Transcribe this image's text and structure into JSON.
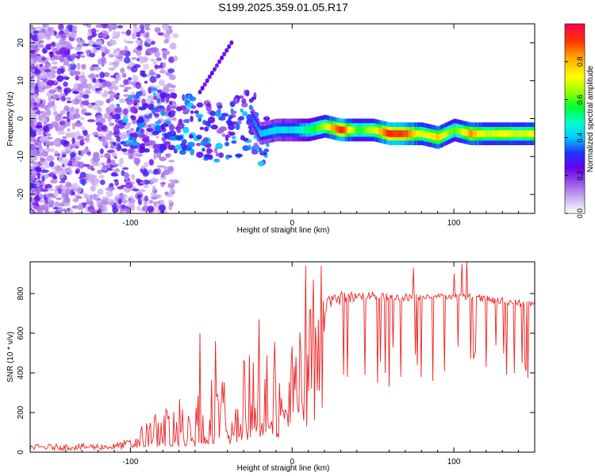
{
  "title": "S199.2025.359.01.05.R17",
  "colors": {
    "snr_line": "#ee2222",
    "colormap": [
      "#ffffff",
      "#c9b0f0",
      "#9a55e8",
      "#6600ee",
      "#2233ff",
      "#00ccff",
      "#00ffcc",
      "#00ff33",
      "#99ff00",
      "#ffff00",
      "#ffaa00",
      "#ff3300",
      "#ff0055"
    ]
  },
  "chart_data": [
    {
      "type": "heatmap",
      "title": "S199.2025.359.01.05.R17",
      "xlabel": "Height of straight line (km)",
      "ylabel": "Frequency (Hz)",
      "xlim": [
        -162,
        150
      ],
      "ylim": [
        -25,
        25
      ],
      "xticks": [
        -100,
        0,
        100
      ],
      "xtick_labels": [
        "-100",
        "0",
        "100"
      ],
      "yticks": [
        20,
        10,
        0,
        -10,
        -20
      ],
      "ytick_labels": [
        "20",
        "10",
        "0",
        "-10",
        "-20"
      ],
      "colorbar": {
        "label": "Normalized spectral amplitude",
        "range": [
          0,
          1
        ],
        "ticks": [
          0.0,
          0.2,
          0.4,
          0.6,
          0.8
        ],
        "tick_labels": [
          "0.0",
          "0.2",
          "0.4",
          "0.6",
          "0.8"
        ]
      },
      "ridge": {
        "x": [
          -162,
          -120,
          -100,
          -80,
          -60,
          -40,
          -25,
          -20,
          -10,
          0,
          10,
          20,
          30,
          40,
          50,
          60,
          70,
          80,
          90,
          100,
          110,
          120,
          130,
          140,
          150
        ],
        "freq": [
          0,
          0,
          -1,
          0,
          -2,
          -4,
          0,
          -4,
          -3,
          -3,
          -3,
          -2,
          -3,
          -3,
          -3,
          -4,
          -4,
          -4,
          -5,
          -3,
          -4,
          -4,
          -4,
          -4,
          -4
        ],
        "peak_amplitude": [
          0.15,
          0.2,
          0.3,
          0.35,
          0.35,
          0.35,
          0.35,
          0.4,
          0.45,
          0.45,
          0.55,
          0.7,
          0.95,
          0.6,
          0.7,
          0.95,
          0.9,
          0.7,
          0.8,
          0.6,
          0.85,
          0.7,
          0.75,
          0.7,
          0.75
        ]
      }
    },
    {
      "type": "line",
      "xlabel": "Height of straight line (km)",
      "ylabel": "SNR (10 * v/v)",
      "xlim": [
        -162,
        150
      ],
      "ylim": [
        0,
        960
      ],
      "xticks": [
        -100,
        0,
        100
      ],
      "xtick_labels": [
        "-100",
        "0",
        "100"
      ],
      "yticks": [
        0,
        200,
        400,
        600,
        800
      ],
      "ytick_labels": [
        "0",
        "200",
        "400",
        "600",
        "800"
      ],
      "series": [
        {
          "name": "SNR",
          "envelope_x": [
            -162,
            -110,
            -100,
            -90,
            -80,
            -70,
            -60,
            -50,
            -40,
            -30,
            -20,
            -10,
            0,
            10,
            20,
            30,
            40,
            50,
            60,
            70,
            80,
            90,
            100,
            110,
            120,
            130,
            140,
            150
          ],
          "envelope_low": [
            10,
            10,
            15,
            30,
            40,
            50,
            60,
            80,
            100,
            120,
            140,
            150,
            200,
            380,
            700,
            740,
            760,
            770,
            760,
            760,
            770,
            780,
            770,
            760,
            750,
            740,
            730,
            730
          ],
          "envelope_high": [
            40,
            45,
            70,
            170,
            220,
            280,
            320,
            380,
            420,
            470,
            520,
            580,
            700,
            780,
            800,
            810,
            810,
            810,
            800,
            800,
            800,
            800,
            800,
            800,
            790,
            780,
            770,
            770
          ],
          "spikes_x": [
            -57,
            -47,
            -20,
            -10,
            8,
            9,
            13,
            18,
            32,
            34,
            45,
            53,
            58,
            60,
            67,
            75,
            76,
            80,
            87,
            94,
            100,
            105,
            106,
            108,
            112,
            120,
            133,
            137,
            142,
            144
          ],
          "spikes_y": [
            600,
            560,
            670,
            720,
            940,
            130,
            870,
            940,
            390,
            380,
            390,
            350,
            400,
            330,
            380,
            930,
            420,
            380,
            360,
            410,
            900,
            950,
            510,
            960,
            470,
            430,
            390,
            400,
            450,
            440
          ]
        }
      ]
    }
  ]
}
